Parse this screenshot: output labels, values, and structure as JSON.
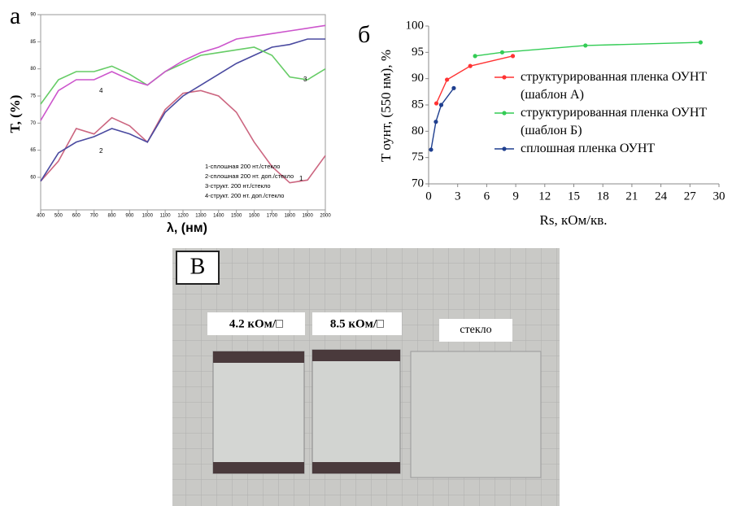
{
  "chart_data": [
    {
      "type": "line",
      "panel_label": "а",
      "ylabel": "T, (%)",
      "xlabel": "λ, (нм)",
      "x": [
        400,
        500,
        600,
        700,
        800,
        900,
        1000,
        1100,
        1200,
        1300,
        1400,
        1500,
        1600,
        1700,
        1800,
        1900,
        2000
      ],
      "xlim": [
        400,
        2000
      ],
      "xticks": [
        400,
        500,
        600,
        700,
        800,
        900,
        1000,
        1100,
        1200,
        1300,
        1400,
        1500,
        1600,
        1700,
        1800,
        1900,
        2000
      ],
      "ylim": [
        54,
        90
      ],
      "yticks": [
        60,
        65,
        70,
        75,
        80,
        85,
        90
      ],
      "series": [
        {
          "name": "1-сплошная 200 нт./стекло",
          "color": "#cc6680",
          "values": [
            59.3,
            63,
            69,
            68,
            71,
            69.5,
            66.5,
            72.5,
            75.5,
            76,
            75,
            72,
            66.5,
            62,
            59,
            59.5,
            64
          ]
        },
        {
          "name": "2-сплошная 200 нт. доп./стекло",
          "color": "#4a4aa0",
          "values": [
            59.3,
            64.5,
            66.5,
            67.5,
            69,
            68,
            66.5,
            72,
            75,
            77,
            79,
            81,
            82.5,
            84,
            84.5,
            85.5,
            85.5
          ]
        },
        {
          "name": "3-структ. 200 нт./стекло",
          "color": "#66cc66",
          "values": [
            73.5,
            78,
            79.5,
            79.5,
            80.5,
            79,
            77,
            79.5,
            81,
            82.5,
            83,
            83.5,
            84,
            82.5,
            78.5,
            78,
            80
          ]
        },
        {
          "name": "4-структ. 200 нт. доп./стекло",
          "color": "#cc55cc",
          "values": [
            70.5,
            76,
            78,
            78,
            79.5,
            78,
            77,
            79.5,
            81.5,
            83,
            84,
            85.5,
            86,
            86.5,
            87,
            87.5,
            88
          ]
        }
      ],
      "curve_labels": [
        "1",
        "2",
        "3",
        "4"
      ]
    },
    {
      "type": "line",
      "panel_label": "б",
      "ylabel": "T оунт, (550 нм), %",
      "xlabel": "Rs, кОм/кв.",
      "xlim": [
        0,
        30
      ],
      "xticks": [
        0,
        3,
        6,
        9,
        12,
        15,
        18,
        21,
        24,
        27,
        30
      ],
      "ylim": [
        70,
        100
      ],
      "yticks": [
        70,
        75,
        80,
        85,
        90,
        95,
        100
      ],
      "series": [
        {
          "name": "структурированная пленка ОУНТ (шаблон А)",
          "color": "#ff3333",
          "x": [
            0.8,
            1.9,
            4.3,
            8.7
          ],
          "values": [
            85.3,
            89.8,
            92.4,
            94.3
          ]
        },
        {
          "name": "структурированная пленка ОУНТ (шаблон Б)",
          "color": "#33cc55",
          "x": [
            4.8,
            7.6,
            16.2,
            28.1
          ],
          "values": [
            94.3,
            95,
            96.3,
            96.9
          ]
        },
        {
          "name": "сплошная пленка ОУНТ",
          "color": "#1f3f8f",
          "x": [
            0.25,
            0.75,
            1.3,
            2.6
          ],
          "values": [
            76.5,
            81.8,
            85,
            88.2
          ]
        }
      ]
    }
  ],
  "photo": {
    "panel_label": "В",
    "labels": [
      "4.2 кОм/□",
      "8.5 кОм/□",
      "стекло"
    ]
  }
}
